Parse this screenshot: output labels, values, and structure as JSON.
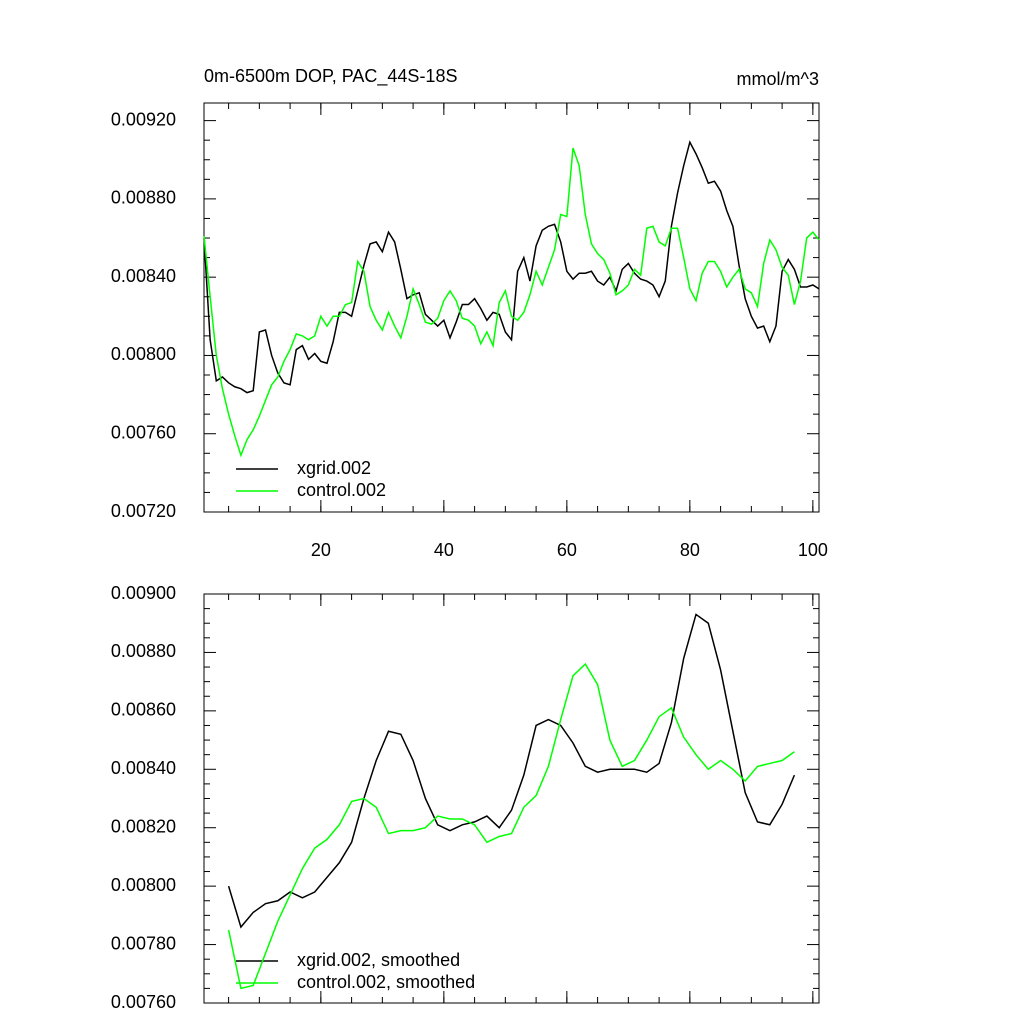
{
  "chart_data": [
    {
      "type": "line",
      "title": "0m-6500m DOP, PAC_44S-18S",
      "units": "mmol/m^3",
      "x": [
        1,
        2,
        3,
        4,
        5,
        6,
        7,
        8,
        9,
        10,
        11,
        12,
        13,
        14,
        15,
        16,
        17,
        18,
        19,
        20,
        21,
        22,
        23,
        24,
        25,
        26,
        27,
        28,
        29,
        30,
        31,
        32,
        33,
        34,
        35,
        36,
        37,
        38,
        39,
        40,
        41,
        42,
        43,
        44,
        45,
        46,
        47,
        48,
        49,
        50,
        51,
        52,
        53,
        54,
        55,
        56,
        57,
        58,
        59,
        60,
        61,
        62,
        63,
        64,
        65,
        66,
        67,
        68,
        69,
        70,
        71,
        72,
        73,
        74,
        75,
        76,
        77,
        78,
        79,
        80,
        81,
        82,
        83,
        84,
        85,
        86,
        87,
        88,
        89,
        90,
        91,
        92,
        93,
        94,
        95,
        96,
        97,
        98,
        99,
        100,
        101
      ],
      "series": [
        {
          "name": "xgrid.002",
          "color": "#000000",
          "values": [
            0.0086,
            0.00808,
            0.00787,
            0.00789,
            0.00786,
            0.00784,
            0.00783,
            0.00781,
            0.00782,
            0.00812,
            0.00813,
            0.008,
            0.00791,
            0.00786,
            0.00785,
            0.00803,
            0.00805,
            0.00798,
            0.00801,
            0.00797,
            0.00796,
            0.00807,
            0.00822,
            0.00822,
            0.0082,
            0.00833,
            0.00846,
            0.00857,
            0.00858,
            0.00853,
            0.00863,
            0.00858,
            0.00844,
            0.00829,
            0.00831,
            0.00832,
            0.00821,
            0.00818,
            0.00815,
            0.00818,
            0.00809,
            0.00817,
            0.00826,
            0.00826,
            0.00829,
            0.00824,
            0.00818,
            0.00822,
            0.00821,
            0.00812,
            0.00808,
            0.00843,
            0.0085,
            0.00838,
            0.00856,
            0.00864,
            0.00866,
            0.00867,
            0.00858,
            0.00843,
            0.00839,
            0.00842,
            0.00842,
            0.00843,
            0.00838,
            0.00836,
            0.0084,
            0.00833,
            0.00844,
            0.00847,
            0.00842,
            0.00839,
            0.00838,
            0.00836,
            0.0083,
            0.00838,
            0.00866,
            0.00883,
            0.00897,
            0.00909,
            0.00903,
            0.00896,
            0.00888,
            0.00889,
            0.00884,
            0.00874,
            0.00866,
            0.00846,
            0.00829,
            0.0082,
            0.00814,
            0.00815,
            0.00807,
            0.00815,
            0.00843,
            0.00849,
            0.00844,
            0.00835,
            0.00835,
            0.00836,
            0.00834
          ]
        },
        {
          "name": "control.002",
          "color": "#00ff00",
          "values": [
            0.00861,
            0.0083,
            0.008,
            0.00783,
            0.0077,
            0.00759,
            0.00749,
            0.00757,
            0.00762,
            0.00769,
            0.00777,
            0.00785,
            0.00789,
            0.00797,
            0.00803,
            0.00811,
            0.0081,
            0.00808,
            0.0081,
            0.0082,
            0.00815,
            0.0082,
            0.0082,
            0.00826,
            0.00827,
            0.00848,
            0.00843,
            0.00825,
            0.00818,
            0.00813,
            0.00822,
            0.00815,
            0.00809,
            0.0082,
            0.00834,
            0.00826,
            0.00817,
            0.00816,
            0.00819,
            0.00828,
            0.00833,
            0.00828,
            0.00819,
            0.00818,
            0.00815,
            0.00806,
            0.00812,
            0.00805,
            0.00827,
            0.00833,
            0.0082,
            0.00818,
            0.00822,
            0.00831,
            0.00843,
            0.00836,
            0.00845,
            0.00854,
            0.00872,
            0.00871,
            0.00906,
            0.00897,
            0.00872,
            0.00857,
            0.00852,
            0.00849,
            0.00842,
            0.00831,
            0.00833,
            0.00836,
            0.00844,
            0.00841,
            0.00865,
            0.00866,
            0.00858,
            0.00856,
            0.00865,
            0.00865,
            0.0085,
            0.00834,
            0.00828,
            0.00842,
            0.00848,
            0.00848,
            0.00843,
            0.00835,
            0.0084,
            0.00844,
            0.00834,
            0.00832,
            0.00825,
            0.00847,
            0.00859,
            0.00854,
            0.00845,
            0.00841,
            0.00826,
            0.00838,
            0.0086,
            0.00863,
            0.00859
          ]
        }
      ],
      "xlim": [
        1,
        101
      ],
      "xticks": [
        20,
        40,
        60,
        80,
        100
      ],
      "ylim": [
        0.0072,
        0.00929
      ],
      "yticks": [
        {
          "value": 0.0072,
          "label": "0.00720"
        },
        {
          "value": 0.0076,
          "label": "0.00760"
        },
        {
          "value": 0.008,
          "label": "0.00800"
        },
        {
          "value": 0.0084,
          "label": "0.00840"
        },
        {
          "value": 0.0088,
          "label": "0.00880"
        },
        {
          "value": 0.0092,
          "label": "0.00920"
        }
      ],
      "legend": "lower-left"
    },
    {
      "type": "line",
      "x": [
        5,
        7,
        9,
        11,
        13,
        15,
        17,
        19,
        21,
        23,
        25,
        27,
        29,
        31,
        33,
        35,
        37,
        39,
        41,
        43,
        45,
        47,
        49,
        51,
        53,
        55,
        57,
        59,
        61,
        63,
        65,
        67,
        69,
        71,
        73,
        75,
        77,
        79,
        81,
        83,
        85,
        87,
        89,
        91,
        93,
        95,
        97
      ],
      "series": [
        {
          "name": "xgrid.002, smoothed",
          "color": "#000000",
          "values": [
            0.008,
            0.00786,
            0.00791,
            0.00794,
            0.00795,
            0.00798,
            0.00796,
            0.00798,
            0.00803,
            0.00808,
            0.00815,
            0.0083,
            0.00843,
            0.00853,
            0.00852,
            0.00843,
            0.0083,
            0.00821,
            0.00819,
            0.00821,
            0.00822,
            0.00824,
            0.0082,
            0.00826,
            0.00838,
            0.00855,
            0.00857,
            0.00855,
            0.00849,
            0.00841,
            0.00839,
            0.0084,
            0.0084,
            0.0084,
            0.00839,
            0.00842,
            0.00856,
            0.00878,
            0.00893,
            0.0089,
            0.00874,
            0.00853,
            0.00832,
            0.00822,
            0.00821,
            0.00828,
            0.00838
          ]
        },
        {
          "name": "control.002, smoothed",
          "color": "#00ff00",
          "values": [
            0.00785,
            0.00765,
            0.00766,
            0.00777,
            0.00788,
            0.00797,
            0.00806,
            0.00813,
            0.00816,
            0.00821,
            0.00829,
            0.0083,
            0.00827,
            0.00818,
            0.00819,
            0.00819,
            0.0082,
            0.00824,
            0.00823,
            0.00823,
            0.00821,
            0.00815,
            0.00817,
            0.00818,
            0.00827,
            0.00831,
            0.00841,
            0.00857,
            0.00872,
            0.00876,
            0.00869,
            0.0085,
            0.00841,
            0.00843,
            0.0085,
            0.00858,
            0.00861,
            0.00851,
            0.00845,
            0.0084,
            0.00843,
            0.0084,
            0.00836,
            0.00841,
            0.00842,
            0.00843,
            0.00846
          ]
        }
      ],
      "xlim": [
        1,
        101
      ],
      "xticks": [
        20,
        40,
        60,
        80,
        100
      ],
      "ylim": [
        0.0076,
        0.009
      ],
      "yticks": [
        {
          "value": 0.0076,
          "label": "0.00760"
        },
        {
          "value": 0.0078,
          "label": "0.00780"
        },
        {
          "value": 0.008,
          "label": "0.00800"
        },
        {
          "value": 0.0082,
          "label": "0.00820"
        },
        {
          "value": 0.0084,
          "label": "0.00840"
        },
        {
          "value": 0.0086,
          "label": "0.00860"
        },
        {
          "value": 0.0088,
          "label": "0.00880"
        },
        {
          "value": 0.009,
          "label": "0.00900"
        }
      ],
      "legend": "lower-left"
    }
  ]
}
